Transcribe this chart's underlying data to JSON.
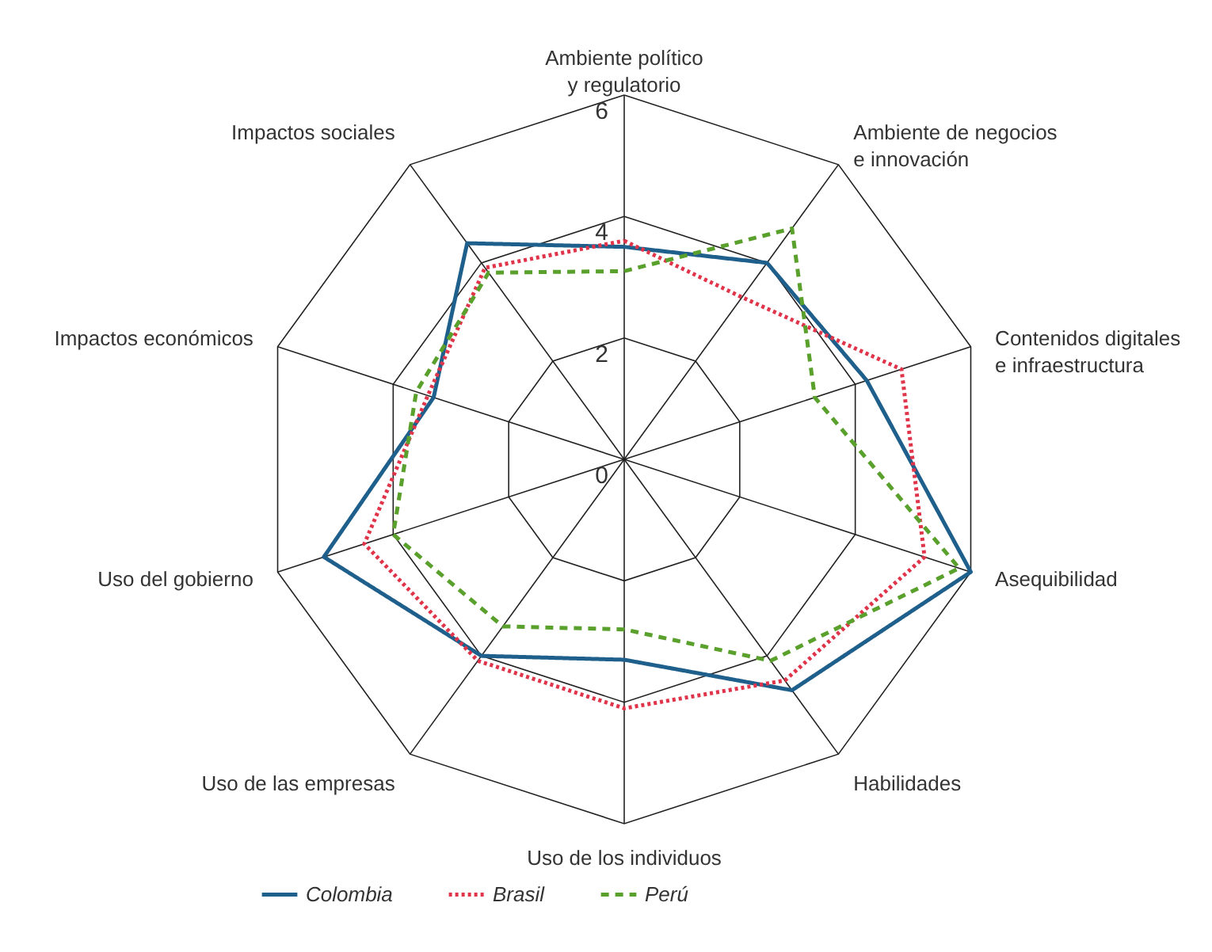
{
  "chart_data": {
    "type": "radar",
    "categories": [
      "Ambiente político\ny regulatorio",
      "Ambiente de negocios\ne innovación",
      "Contenidos digitales\ne infraestructura",
      "Asequibilidad",
      "Habilidades",
      "Uso de los individuos",
      "Uso de las empresas",
      "Uso del gobierno",
      "Impactos económicos",
      "Impactos sociales"
    ],
    "series": [
      {
        "name": "Colombia",
        "color": "#1f5f8b",
        "line_style": "solid",
        "values": [
          3.5,
          4.0,
          4.2,
          6.0,
          4.7,
          3.3,
          4.0,
          5.2,
          3.3,
          4.4
        ]
      },
      {
        "name": "Brasil",
        "color": "#e0344a",
        "line_style": "dotted",
        "values": [
          3.6,
          3.3,
          4.8,
          5.2,
          4.5,
          4.1,
          4.1,
          4.5,
          3.4,
          3.9
        ]
      },
      {
        "name": "Perú",
        "color": "#5aa02c",
        "line_style": "dashed",
        "values": [
          3.1,
          4.7,
          3.3,
          5.8,
          4.1,
          2.8,
          3.4,
          4.0,
          3.6,
          3.8
        ]
      }
    ],
    "ylim": [
      0,
      6
    ],
    "yticks": [
      0,
      2,
      4,
      6
    ],
    "grid": true,
    "legend": "bottom",
    "marker": "none"
  }
}
